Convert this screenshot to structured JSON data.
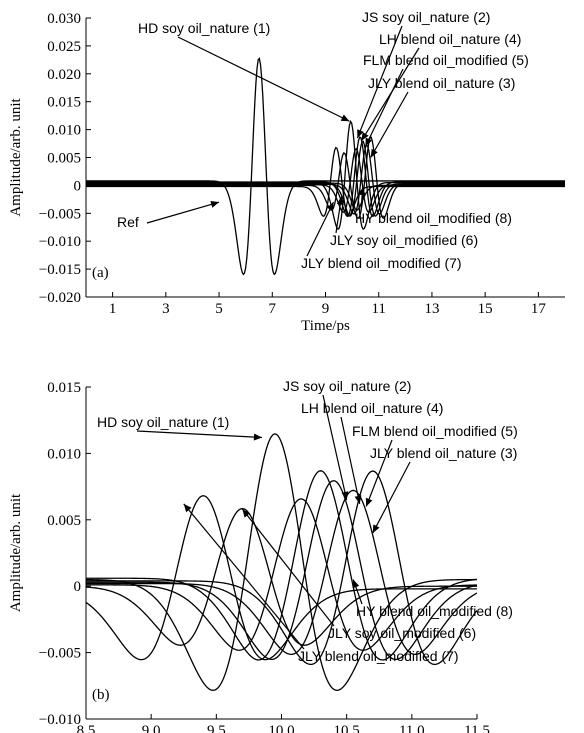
{
  "chart_data": [
    {
      "type": "line",
      "panel_label": "(a)",
      "xlabel": "Time/ps",
      "ylabel": "Amplitude/arb. unit",
      "xlim": [
        0,
        18
      ],
      "ylim": [
        -0.02,
        0.03
      ],
      "x_ticks": [
        1,
        3,
        5,
        7,
        9,
        11,
        13,
        15,
        17
      ],
      "x_tick_labels": [
        "1",
        "3",
        "5",
        "7",
        "9",
        "11",
        "13",
        "15",
        "17"
      ],
      "y_ticks": [
        -0.02,
        -0.015,
        -0.01,
        -0.005,
        0,
        0.005,
        0.01,
        0.015,
        0.02,
        0.025,
        0.03
      ],
      "y_tick_labels": [
        "−0.020",
        "−0.015",
        "−0.010",
        "−0.005",
        "0",
        "0.005",
        "0.010",
        "0.015",
        "0.020",
        "0.025",
        "0.030"
      ],
      "series": [
        {
          "name": "Ref",
          "center": 6.5,
          "amp": 0.0245,
          "width": 0.55,
          "baseline": 0.0008
        },
        {
          "name": "HD soy oil_nature (1)",
          "center": 9.95,
          "amp": 0.0122,
          "width": 0.45,
          "baseline": 0.0005
        },
        {
          "name": "JS soy oil_nature (2)",
          "center": 10.3,
          "amp": 0.009,
          "width": 0.45,
          "baseline": 0.0006
        },
        {
          "name": "JLY blend oil_nature (3)",
          "center": 10.7,
          "amp": 0.0092,
          "width": 0.45,
          "baseline": 0.0004
        },
        {
          "name": "LH blend oil_nature (4)",
          "center": 10.4,
          "amp": 0.0085,
          "width": 0.45,
          "baseline": 0.0003
        },
        {
          "name": "FLM blend oil_modified (5)",
          "center": 10.55,
          "amp": 0.0078,
          "width": 0.45,
          "baseline": 0.0002
        },
        {
          "name": "JLY soy oil_modified (6)",
          "center": 9.7,
          "amp": 0.0065,
          "width": 0.45,
          "baseline": 0.0
        },
        {
          "name": "JLY blend oil_modified (7)",
          "center": 9.4,
          "amp": 0.0078,
          "width": 0.45,
          "baseline": -0.0002
        },
        {
          "name": "HY blend oil_modified (8)",
          "center": 10.15,
          "amp": 0.0072,
          "width": 0.45,
          "baseline": 0.0001
        }
      ],
      "annotations": [
        {
          "text": "HD soy oil_nature (1)",
          "target": [
            9.9,
            0.0115
          ]
        },
        {
          "text": "JS soy oil_nature (2)",
          "target": [
            10.2,
            0.0085
          ]
        },
        {
          "text": "LH blend oil_nature (4)",
          "target": [
            10.35,
            0.008
          ]
        },
        {
          "text": "FLM blend oil_modified (5)",
          "target": [
            10.5,
            0.007
          ]
        },
        {
          "text": "JLY blend oil_nature (3)",
          "target": [
            10.7,
            0.005
          ]
        },
        {
          "text": "Ref",
          "target": [
            5.0,
            -0.003
          ]
        },
        {
          "text": "HY blend oil_modified (8)",
          "target": [
            10.4,
            -0.0003
          ]
        },
        {
          "text": "JLY soy oil_modified (6)",
          "target": [
            9.6,
            -0.002
          ]
        },
        {
          "text": "JLY blend oil_modified (7)",
          "target": [
            9.3,
            -0.003
          ]
        }
      ]
    },
    {
      "type": "line",
      "panel_label": "(b)",
      "xlabel": "Time/ps",
      "ylabel": "Amplitude/arb. unit",
      "xlim": [
        8.5,
        11.5
      ],
      "ylim": [
        -0.01,
        0.015
      ],
      "x_ticks": [
        8.5,
        9.0,
        9.5,
        10.0,
        10.5,
        11.0,
        11.5
      ],
      "x_tick_labels": [
        "8.5",
        "9.0",
        "9.5",
        "10.0",
        "10.5",
        "11.0",
        "11.5"
      ],
      "y_ticks": [
        -0.01,
        -0.005,
        0,
        0.005,
        0.01,
        0.015
      ],
      "y_tick_labels": [
        "−0.010",
        "−0.005",
        "0",
        "0.005",
        "0.010",
        "0.015"
      ],
      "series": [
        {
          "name": "HD soy oil_nature (1)",
          "center": 9.95,
          "amp": 0.0122,
          "width": 0.45,
          "baseline": 0.0005
        },
        {
          "name": "JS soy oil_nature (2)",
          "center": 10.3,
          "amp": 0.009,
          "width": 0.45,
          "baseline": 0.0006
        },
        {
          "name": "JLY blend oil_nature (3)",
          "center": 10.7,
          "amp": 0.0092,
          "width": 0.45,
          "baseline": 0.0004
        },
        {
          "name": "LH blend oil_nature (4)",
          "center": 10.4,
          "amp": 0.0085,
          "width": 0.45,
          "baseline": 0.0003
        },
        {
          "name": "FLM blend oil_modified (5)",
          "center": 10.55,
          "amp": 0.0078,
          "width": 0.45,
          "baseline": 0.0002
        },
        {
          "name": "JLY soy oil_modified (6)",
          "center": 9.7,
          "amp": 0.0065,
          "width": 0.45,
          "baseline": 0.0
        },
        {
          "name": "JLY blend oil_modified (7)",
          "center": 9.4,
          "amp": 0.0078,
          "width": 0.45,
          "baseline": -0.0002
        },
        {
          "name": "HY blend oil_modified (8)",
          "center": 10.15,
          "amp": 0.0072,
          "width": 0.45,
          "baseline": 0.0001
        }
      ],
      "annotations": [
        {
          "text": "HD soy oil_nature (1)",
          "target": [
            9.85,
            0.0112
          ]
        },
        {
          "text": "JS soy oil_nature (2)",
          "target": [
            10.5,
            0.0065
          ]
        },
        {
          "text": "LH blend oil_nature (4)",
          "target": [
            10.6,
            0.0062
          ]
        },
        {
          "text": "FLM blend oil_modified (5)",
          "target": [
            10.65,
            0.006
          ]
        },
        {
          "text": "JLY blend oil_nature (3)",
          "target": [
            10.7,
            0.004
          ]
        },
        {
          "text": "HY blend oil_modified (8)",
          "target": [
            10.55,
            0.0005
          ]
        },
        {
          "text": "JLY soy oil_modified (6)",
          "target": [
            9.7,
            0.0058
          ]
        },
        {
          "text": "JLY blend oil_modified (7)",
          "target": [
            9.25,
            0.0062
          ]
        }
      ]
    }
  ]
}
